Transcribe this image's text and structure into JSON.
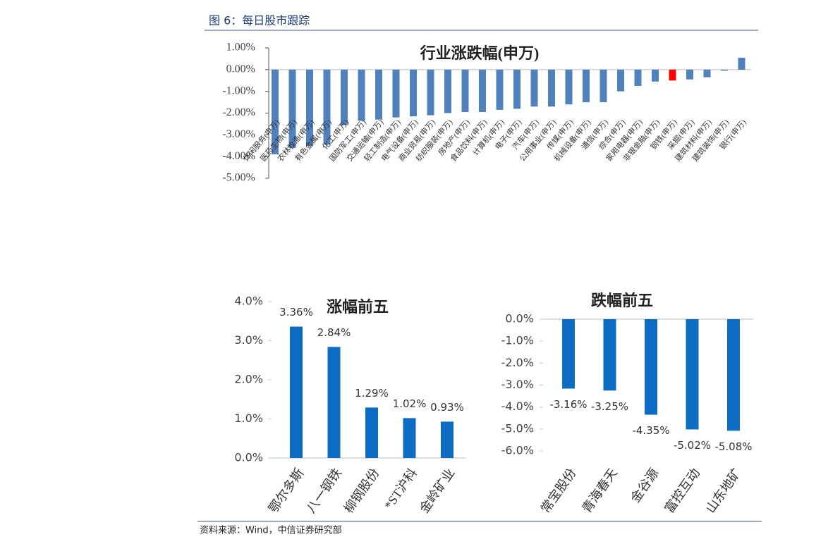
{
  "header": {
    "title": "图 6：每日股市跟踪"
  },
  "source": "资料来源：Wind，中信证券研究部",
  "chart_data": [
    {
      "type": "bar",
      "title": "行业涨跌幅(申万)",
      "categories": [
        "休闲服务(申万)",
        "医药生物(申万)",
        "农林牧渔(申万)",
        "有色金属(申万)",
        "化工(申万)",
        "国防军工(申万)",
        "交通运输(申万)",
        "轻工制造(申万)",
        "电气设备(申万)",
        "商业贸易(申万)",
        "纺织服装(申万)",
        "房地产(申万)",
        "食品饮料(申万)",
        "计算机(申万)",
        "电子(申万)",
        "汽车(申万)",
        "公用事业(申万)",
        "传媒(申万)",
        "机械设备(申万)",
        "通信(申万)",
        "综合(申万)",
        "家用电器(申万)",
        "非银金融(申万)",
        "钢铁(申万)",
        "采掘(申万)",
        "建筑材料(申万)",
        "建筑装饰(申万)",
        "银行(申万)"
      ],
      "values": [
        -3.9,
        -3.6,
        -3.5,
        -3.45,
        -2.55,
        -2.35,
        -2.3,
        -2.2,
        -2.15,
        -2.1,
        -2.0,
        -1.95,
        -1.95,
        -1.85,
        -1.8,
        -1.7,
        -1.7,
        -1.6,
        -1.5,
        -1.5,
        -1.0,
        -0.75,
        -0.55,
        -0.5,
        -0.45,
        -0.35,
        -0.05,
        0.55
      ],
      "colors": [
        "#4f81bd",
        "#4f81bd",
        "#4f81bd",
        "#4f81bd",
        "#4f81bd",
        "#4f81bd",
        "#4f81bd",
        "#4f81bd",
        "#4f81bd",
        "#4f81bd",
        "#4f81bd",
        "#4f81bd",
        "#4f81bd",
        "#4f81bd",
        "#4f81bd",
        "#4f81bd",
        "#4f81bd",
        "#4f81bd",
        "#4f81bd",
        "#4f81bd",
        "#4f81bd",
        "#4f81bd",
        "#4f81bd",
        "#ff0000",
        "#4f81bd",
        "#4f81bd",
        "#4f81bd",
        "#4f81bd"
      ],
      "ylim": [
        -5,
        1
      ],
      "yticks": [
        {
          "value": 1,
          "label": "1.00%"
        },
        {
          "value": 0,
          "label": "0.00%"
        },
        {
          "value": -1,
          "label": "-1.00%"
        },
        {
          "value": -2,
          "label": "-2.00%"
        },
        {
          "value": -3,
          "label": "-3.00%"
        },
        {
          "value": -4,
          "label": "-4.00%"
        },
        {
          "value": -5,
          "label": "-5.00%"
        }
      ]
    },
    {
      "type": "bar",
      "title": "涨幅前五",
      "categories": [
        "鄂尔多斯",
        "八一钢铁",
        "柳钢股份",
        "*ST沪科",
        "金岭矿业"
      ],
      "values": [
        3.36,
        2.84,
        1.29,
        1.02,
        0.93
      ],
      "value_labels": [
        "3.36%",
        "2.84%",
        "1.29%",
        "1.02%",
        "0.93%"
      ],
      "color": "#0c6dc2",
      "ylim": [
        0,
        4
      ],
      "yticks": [
        {
          "value": 0,
          "label": "0.0%"
        },
        {
          "value": 1,
          "label": "1.0%"
        },
        {
          "value": 2,
          "label": "2.0%"
        },
        {
          "value": 3,
          "label": "3.0%"
        },
        {
          "value": 4,
          "label": "4.0%"
        }
      ]
    },
    {
      "type": "bar",
      "title": "跌幅前五",
      "categories": [
        "常宝股份",
        "青海春天",
        "金谷源",
        "富控互动",
        "山东地矿"
      ],
      "values": [
        -3.16,
        -3.25,
        -4.35,
        -5.02,
        -5.08
      ],
      "value_labels": [
        "-3.16%",
        "-3.25%",
        "-4.35%",
        "-5.02%",
        "-5.08%"
      ],
      "color": "#0c6dc2",
      "ylim": [
        -6,
        0
      ],
      "yticks": [
        {
          "value": 0,
          "label": "0.0%"
        },
        {
          "value": -1,
          "label": "-1.0%"
        },
        {
          "value": -2,
          "label": "-2.0%"
        },
        {
          "value": -3,
          "label": "-3.0%"
        },
        {
          "value": -4,
          "label": "-4.0%"
        },
        {
          "value": -5,
          "label": "-5.0%"
        },
        {
          "value": -6,
          "label": "-6.0%"
        }
      ]
    }
  ]
}
